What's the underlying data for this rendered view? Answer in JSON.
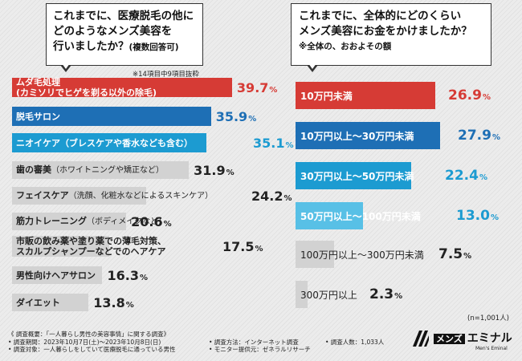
{
  "questions": {
    "left": {
      "lines": [
        "これまでに、医療脱毛の他に",
        "どのようなメンズ美容を",
        "行いましたか？"
      ],
      "sub": "(複数回答可)"
    },
    "right": {
      "lines": [
        "これまでに、全体的にどのくらい",
        "メンズ美容にお金をかけましたか？"
      ],
      "sub": "※全体の、おおよその額"
    }
  },
  "left_note": "※14項目中9項目抜粋",
  "n_total": "(n=1,001人)",
  "footer": {
    "col1": [
      "《 調査概要：「一人暮らし男性の美容事情」に関する調査》",
      "• 調査期間：2023年10月7日(土)～2023年10月8日(日)",
      "• 調査対象：一人暮らしをしていて医療脱毛に通っている男性"
    ],
    "col2": [
      "• 調査方法：インターネット調査",
      "• モニター提供元：ゼネラルリサーチ"
    ],
    "col3": [
      "• 調査人数：1,033人"
    ]
  },
  "logo": {
    "mens": "メンズ",
    "name": "エミナル",
    "sub": "Men's Eminal"
  },
  "colors": {
    "red": "#d63b35",
    "blue": "#1e6fb5",
    "teal": "#1c9bd1",
    "lightblue": "#58c0e6",
    "gray": "#d2d2d2",
    "dark": "#222222"
  },
  "chart_data": [
    {
      "type": "bar",
      "orientation": "horizontal",
      "title": "これまでに、医療脱毛の他にどのようなメンズ美容を行いましたか？(複数回答可)",
      "unit": "%",
      "xlim": [
        0,
        100
      ],
      "categories": [
        {
          "label": "ムダ毛処理",
          "sub": "(カミソリでヒゲを剃る以外の除毛)"
        },
        {
          "label": "脱毛サロン",
          "sub": ""
        },
        {
          "label": "ニオイケア（ブレスケアや香水なども含む）",
          "sub": ""
        },
        {
          "label": "歯の審美",
          "sub": "（ホワイトニングや矯正など）"
        },
        {
          "label": "フェイスケア",
          "sub": "（洗顔、化粧水などによるスキンケア）"
        },
        {
          "label": "筋力トレーニング",
          "sub": "（ボディメイクなど）"
        },
        {
          "label": "市販の飲み薬や塗り薬での薄毛対策、",
          "sub": "スカルプシャンプーなどでのヘアケア"
        },
        {
          "label": "男性向けヘアサロン",
          "sub": ""
        },
        {
          "label": "ダイエット",
          "sub": ""
        }
      ],
      "values": [
        39.7,
        35.9,
        35.1,
        31.9,
        24.2,
        20.6,
        17.5,
        16.3,
        13.8
      ],
      "bar_colors": [
        "red",
        "blue",
        "teal",
        "gray",
        "gray",
        "gray",
        "gray",
        "gray",
        "gray"
      ],
      "label_colors": [
        "#ffffff",
        "#ffffff",
        "#ffffff",
        "#222222",
        "#222222",
        "#222222",
        "#222222",
        "#222222",
        "#222222"
      ],
      "value_colors": [
        "#d63b35",
        "#1e6fb5",
        "#1c9bd1",
        "#222222",
        "#222222",
        "#222222",
        "#222222",
        "#222222",
        "#222222"
      ]
    },
    {
      "type": "bar",
      "orientation": "horizontal",
      "title": "これまでに、全体的にどのくらいメンズ美容にお金をかけましたか？",
      "unit": "%",
      "xlim": [
        0,
        100
      ],
      "categories": [
        "10万円未満",
        "10万円以上～30万円未満",
        "30万円以上～50万円未満",
        "50万円以上～100万円未満",
        "100万円以上～300万円未満",
        "300万円以上"
      ],
      "values": [
        26.9,
        27.9,
        22.4,
        13.0,
        7.5,
        2.3
      ],
      "bar_colors": [
        "red",
        "blue",
        "teal",
        "lightblue",
        "gray",
        "gray"
      ],
      "label_colors": [
        "#ffffff",
        "#ffffff",
        "#ffffff",
        "#ffffff",
        "#222222",
        "#222222"
      ],
      "value_colors": [
        "#d63b35",
        "#1e6fb5",
        "#1c9bd1",
        "#1c9bd1",
        "#222222",
        "#222222"
      ]
    }
  ]
}
